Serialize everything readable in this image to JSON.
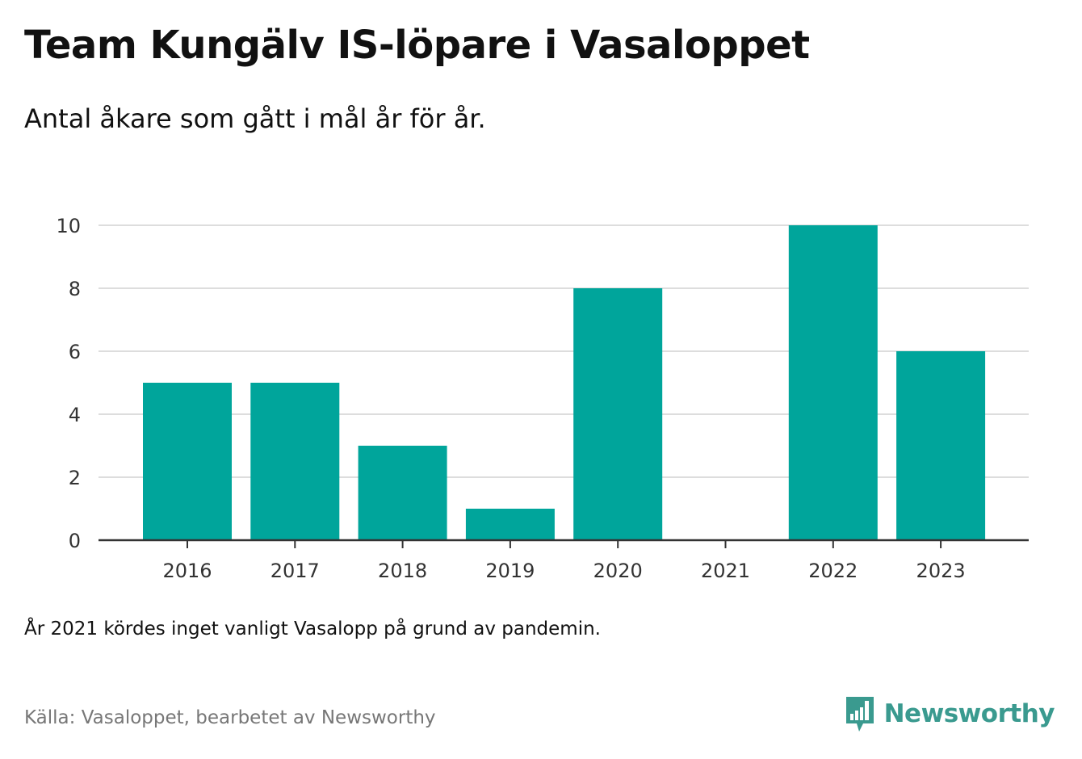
{
  "header": {
    "title": "Team Kungälv IS-löpare i Vasaloppet",
    "subtitle": "Antal åkare som gått i mål år för år."
  },
  "footer": {
    "note": "År 2021 kördes inget vanligt Vasalopp på grund av pandemin.",
    "source": "Källa: Vasaloppet, bearbetet av Newsworthy",
    "brand_name": "Newsworthy",
    "brand_icon": "newsworthy-chart-bubble-icon"
  },
  "colors": {
    "bar": "#00a59b",
    "grid": "#dddddd",
    "axis": "#333333",
    "brand": "#3a9a8f"
  },
  "chart_data": {
    "type": "bar",
    "categories": [
      "2016",
      "2017",
      "2018",
      "2019",
      "2020",
      "2021",
      "2022",
      "2023"
    ],
    "values": [
      5,
      5,
      3,
      1,
      8,
      0,
      10,
      6
    ],
    "ylim": [
      0,
      10
    ],
    "yticks": [
      0,
      2,
      4,
      6,
      8,
      10
    ],
    "grid": true,
    "legend": "none"
  }
}
